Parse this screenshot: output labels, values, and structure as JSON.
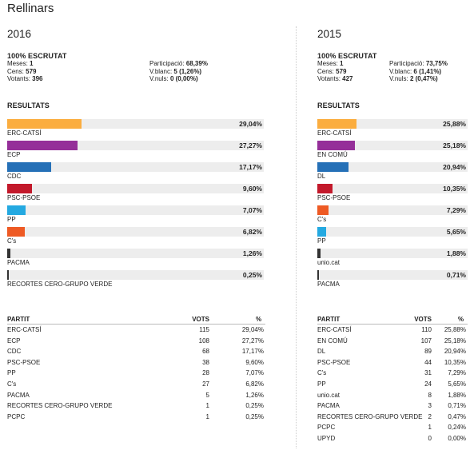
{
  "municipality": "Rellinars",
  "colors": {
    "ERC-CATSÍ": "#fbad3f",
    "ECP": "#952f99",
    "EN COMÚ": "#952f99",
    "CDC": "#2570b7",
    "DL": "#2570b7",
    "PSC-PSOE": "#c3192b",
    "PP": "#24a9e1",
    "C's": "#ee5a24",
    "PACMA": "#333333",
    "unio.cat": "#333333",
    "RECORTES CERO-GRUPO VERDE": "#333333"
  },
  "elections": [
    {
      "year": "2016",
      "summary": {
        "scrutiny": "100% ESCRUTAT",
        "meses_label": "Meses:",
        "meses": "1",
        "cens_label": "Cens:",
        "cens": "579",
        "votants_label": "Votants:",
        "votants": "396",
        "participacio_label": "Participació:",
        "participacio": "68,39%",
        "vblanc_label": "V.blanc:",
        "vblanc": "5 (1,26%)",
        "vnuls_label": "V.nuls:",
        "vnuls": "0 (0,00%)"
      },
      "results_title": "RESULTATS",
      "bars": [
        {
          "party": "ERC-CATSÍ",
          "pct": "29,04%",
          "value": 29.04
        },
        {
          "party": "ECP",
          "pct": "27,27%",
          "value": 27.27
        },
        {
          "party": "CDC",
          "pct": "17,17%",
          "value": 17.17
        },
        {
          "party": "PSC-PSOE",
          "pct": "9,60%",
          "value": 9.6
        },
        {
          "party": "PP",
          "pct": "7,07%",
          "value": 7.07
        },
        {
          "party": "C's",
          "pct": "6,82%",
          "value": 6.82
        },
        {
          "party": "PACMA",
          "pct": "1,26%",
          "value": 1.26
        },
        {
          "party": "RECORTES CERO-GRUPO VERDE",
          "pct": "0,25%",
          "value": 0.25
        }
      ],
      "table": {
        "headers": {
          "party": "PARTIT",
          "votes": "VOTS",
          "pct": "%"
        },
        "rows": [
          {
            "party": "ERC-CATSÍ",
            "votes": "115",
            "pct": "29,04%"
          },
          {
            "party": "ECP",
            "votes": "108",
            "pct": "27,27%"
          },
          {
            "party": "CDC",
            "votes": "68",
            "pct": "17,17%"
          },
          {
            "party": "PSC-PSOE",
            "votes": "38",
            "pct": "9,60%"
          },
          {
            "party": "PP",
            "votes": "28",
            "pct": "7,07%"
          },
          {
            "party": "C's",
            "votes": "27",
            "pct": "6,82%"
          },
          {
            "party": "PACMA",
            "votes": "5",
            "pct": "1,26%"
          },
          {
            "party": "RECORTES CERO-GRUPO VERDE",
            "votes": "1",
            "pct": "0,25%"
          },
          {
            "party": "PCPC",
            "votes": "1",
            "pct": "0,25%"
          }
        ]
      }
    },
    {
      "year": "2015",
      "summary": {
        "scrutiny": "100% ESCRUTAT",
        "meses_label": "Meses:",
        "meses": "1",
        "cens_label": "Cens:",
        "cens": "579",
        "votants_label": "Votants:",
        "votants": "427",
        "participacio_label": "Participació:",
        "participacio": "73,75%",
        "vblanc_label": "V.blanc:",
        "vblanc": "6 (1,41%)",
        "vnuls_label": "V.nuls:",
        "vnuls": "2 (0,47%)"
      },
      "results_title": "RESULTATS",
      "bars": [
        {
          "party": "ERC-CATSÍ",
          "pct": "25,88%",
          "value": 25.88
        },
        {
          "party": "EN COMÚ",
          "pct": "25,18%",
          "value": 25.18
        },
        {
          "party": "DL",
          "pct": "20,94%",
          "value": 20.94
        },
        {
          "party": "PSC-PSOE",
          "pct": "10,35%",
          "value": 10.35
        },
        {
          "party": "C's",
          "pct": "7,29%",
          "value": 7.29
        },
        {
          "party": "PP",
          "pct": "5,65%",
          "value": 5.65
        },
        {
          "party": "unio.cat",
          "pct": "1,88%",
          "value": 1.88
        },
        {
          "party": "PACMA",
          "pct": "0,71%",
          "value": 0.71
        }
      ],
      "table": {
        "headers": {
          "party": "PARTIT",
          "votes": "VOTS",
          "pct": "%"
        },
        "rows": [
          {
            "party": "ERC-CATSÍ",
            "votes": "110",
            "pct": "25,88%"
          },
          {
            "party": "EN COMÚ",
            "votes": "107",
            "pct": "25,18%"
          },
          {
            "party": "DL",
            "votes": "89",
            "pct": "20,94%"
          },
          {
            "party": "PSC-PSOE",
            "votes": "44",
            "pct": "10,35%"
          },
          {
            "party": "C's",
            "votes": "31",
            "pct": "7,29%"
          },
          {
            "party": "PP",
            "votes": "24",
            "pct": "5,65%"
          },
          {
            "party": "unio.cat",
            "votes": "8",
            "pct": "1,88%"
          },
          {
            "party": "PACMA",
            "votes": "3",
            "pct": "0,71%"
          },
          {
            "party": "RECORTES CERO-GRUPO VERDE",
            "votes": "2",
            "pct": "0,47%"
          },
          {
            "party": "PCPC",
            "votes": "1",
            "pct": "0,24%"
          },
          {
            "party": "UPYD",
            "votes": "0",
            "pct": "0,00%"
          }
        ]
      }
    }
  ]
}
